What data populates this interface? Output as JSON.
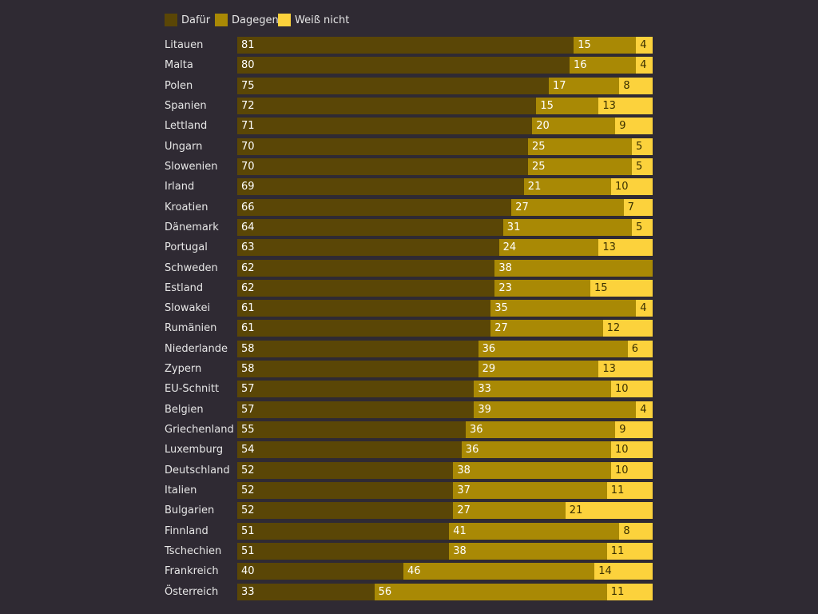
{
  "chart_data": {
    "type": "bar",
    "orientation": "horizontal",
    "stacked": true,
    "legend_position": "top-left",
    "grid": false,
    "xlim": [
      0,
      100
    ],
    "series": [
      {
        "name": "Dafür",
        "color": "#5a4606"
      },
      {
        "name": "Dagegen",
        "color": "#a98905"
      },
      {
        "name": "Weiß nicht",
        "color": "#fcd23c"
      }
    ],
    "rows": [
      {
        "label": "Litauen",
        "values": [
          81,
          15,
          4
        ]
      },
      {
        "label": "Malta",
        "values": [
          80,
          16,
          4
        ]
      },
      {
        "label": "Polen",
        "values": [
          75,
          17,
          8
        ]
      },
      {
        "label": "Spanien",
        "values": [
          72,
          15,
          13
        ]
      },
      {
        "label": "Lettland",
        "values": [
          71,
          20,
          9
        ]
      },
      {
        "label": "Ungarn",
        "values": [
          70,
          25,
          5
        ]
      },
      {
        "label": "Slowenien",
        "values": [
          70,
          25,
          5
        ]
      },
      {
        "label": "Irland",
        "values": [
          69,
          21,
          10
        ]
      },
      {
        "label": "Kroatien",
        "values": [
          66,
          27,
          7
        ]
      },
      {
        "label": "Dänemark",
        "values": [
          64,
          31,
          5
        ]
      },
      {
        "label": "Portugal",
        "values": [
          63,
          24,
          13
        ]
      },
      {
        "label": "Schweden",
        "values": [
          62,
          38,
          null
        ]
      },
      {
        "label": "Estland",
        "values": [
          62,
          23,
          15
        ]
      },
      {
        "label": "Slowakei",
        "values": [
          61,
          35,
          4
        ]
      },
      {
        "label": "Rumänien",
        "values": [
          61,
          27,
          12
        ]
      },
      {
        "label": "Niederlande",
        "values": [
          58,
          36,
          6
        ]
      },
      {
        "label": "Zypern",
        "values": [
          58,
          29,
          13
        ]
      },
      {
        "label": "EU-Schnitt",
        "values": [
          57,
          33,
          10
        ]
      },
      {
        "label": "Belgien",
        "values": [
          57,
          39,
          4
        ]
      },
      {
        "label": "Griechenland",
        "values": [
          55,
          36,
          9
        ]
      },
      {
        "label": "Luxemburg",
        "values": [
          54,
          36,
          10
        ]
      },
      {
        "label": "Deutschland",
        "values": [
          52,
          38,
          10
        ]
      },
      {
        "label": "Italien",
        "values": [
          52,
          37,
          11
        ]
      },
      {
        "label": "Bulgarien",
        "values": [
          52,
          27,
          21
        ]
      },
      {
        "label": "Finnland",
        "values": [
          51,
          41,
          8
        ]
      },
      {
        "label": "Tschechien",
        "values": [
          51,
          38,
          11
        ]
      },
      {
        "label": "Frankreich",
        "values": [
          40,
          46,
          14
        ]
      },
      {
        "label": "Österreich",
        "values": [
          33,
          56,
          11
        ]
      }
    ]
  }
}
